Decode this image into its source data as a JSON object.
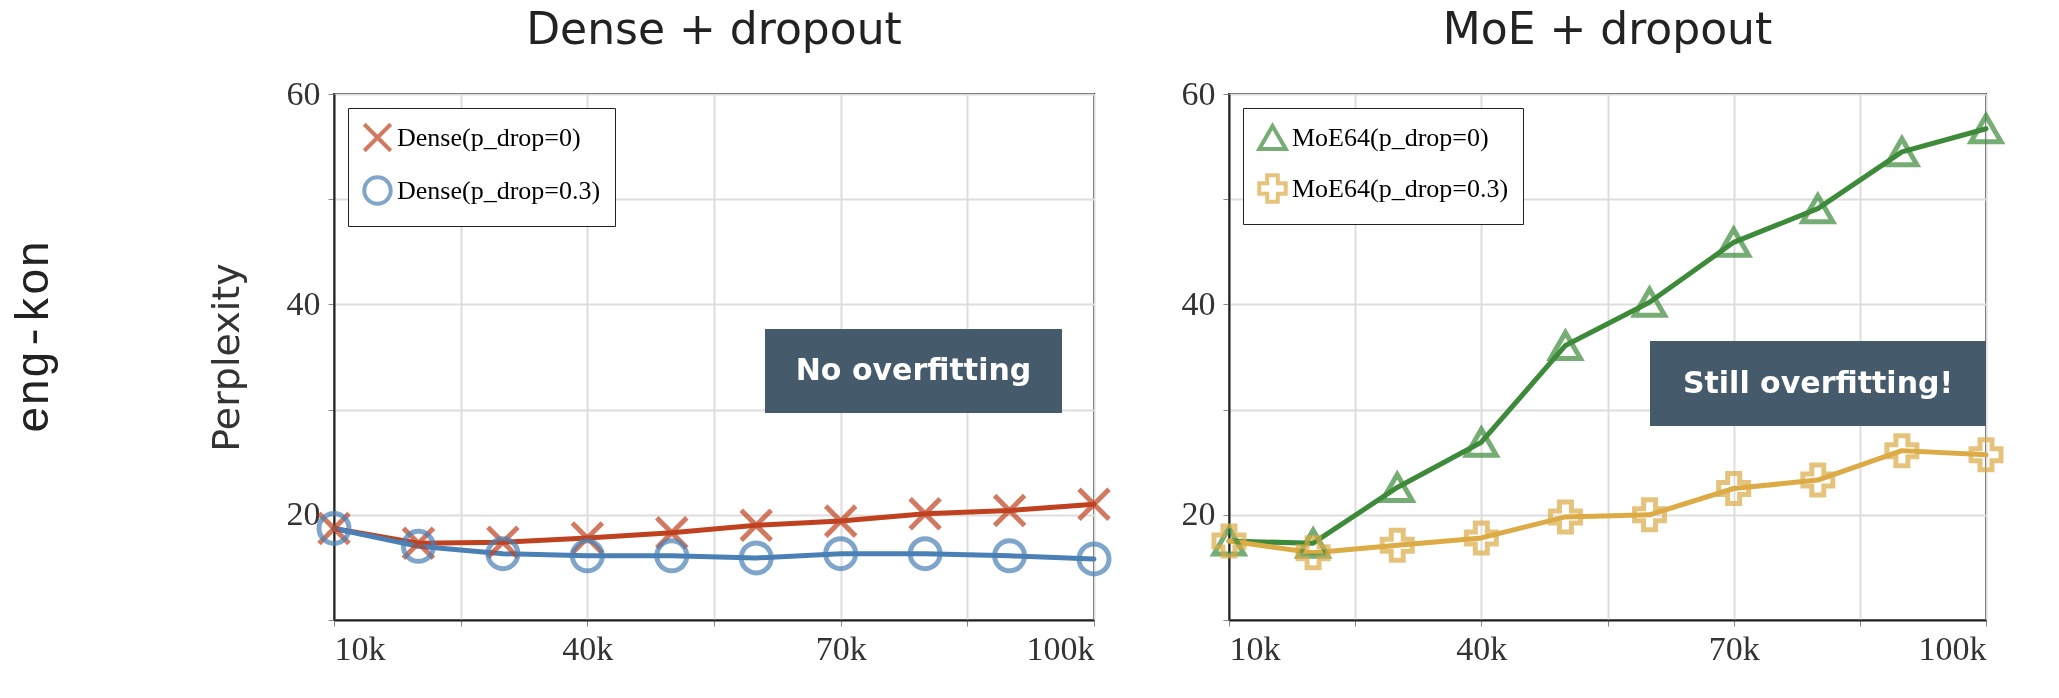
{
  "chart_data": [
    {
      "type": "line",
      "title": "Dense + dropout",
      "ylabel": "Perplexity",
      "x": [
        10000,
        20000,
        30000,
        40000,
        50000,
        60000,
        70000,
        80000,
        90000,
        100000
      ],
      "series": [
        {
          "name": "Dense(p_drop=0)",
          "color": "#c0411f",
          "marker": "x",
          "values": [
            18.7,
            17.3,
            17.4,
            17.8,
            18.3,
            19.0,
            19.4,
            20.1,
            20.4,
            21.0
          ]
        },
        {
          "name": "Dense(p_drop=0.3)",
          "color": "#4a80b5",
          "marker": "circle",
          "values": [
            18.7,
            17.0,
            16.3,
            16.1,
            16.1,
            15.9,
            16.3,
            16.3,
            16.1,
            15.8
          ]
        }
      ],
      "xlim": [
        10000,
        100000
      ],
      "xticks": [
        {
          "value": 10000,
          "label": "10k"
        },
        {
          "value": 25000,
          "label": null
        },
        {
          "value": 40000,
          "label": "40k"
        },
        {
          "value": 55000,
          "label": null
        },
        {
          "value": 70000,
          "label": "70k"
        },
        {
          "value": 85000,
          "label": null
        },
        {
          "value": 100000,
          "label": "100k"
        }
      ],
      "ylim": [
        10,
        60
      ],
      "yticks": [
        {
          "value": 10,
          "label": null
        },
        20,
        {
          "value": 30,
          "label": null
        },
        40,
        {
          "value": 50,
          "label": null
        },
        60
      ],
      "grid": true,
      "legend": "top left",
      "line_style": "solid",
      "annotations": [
        "eng-kon",
        "No overfitting"
      ]
    },
    {
      "type": "line",
      "title": "MoE + dropout",
      "x": [
        10000,
        20000,
        30000,
        40000,
        50000,
        60000,
        70000,
        80000,
        90000,
        100000
      ],
      "series": [
        {
          "name": "MoE64(p_drop=0)",
          "color": "#3d8b3a",
          "marker": "triangle",
          "values": [
            17.5,
            17.3,
            22.6,
            26.9,
            36.1,
            40.2,
            45.9,
            49.1,
            54.5,
            56.7
          ]
        },
        {
          "name": "MoE64(p_drop=0.3)",
          "color": "#dcab45",
          "marker": "cross",
          "values": [
            17.5,
            16.4,
            17.1,
            17.8,
            19.8,
            20.0,
            22.5,
            23.3,
            26.1,
            25.7
          ]
        }
      ],
      "xlim": [
        10000,
        100000
      ],
      "xticks": [
        {
          "value": 10000,
          "label": "10k"
        },
        {
          "value": 25000,
          "label": null
        },
        {
          "value": 40000,
          "label": "40k"
        },
        {
          "value": 55000,
          "label": null
        },
        {
          "value": 70000,
          "label": "70k"
        },
        {
          "value": 85000,
          "label": null
        },
        {
          "value": 100000,
          "label": "100k"
        }
      ],
      "ylim": [
        10,
        60
      ],
      "yticks": [
        {
          "value": 10,
          "label": null
        },
        20,
        {
          "value": 30,
          "label": null
        },
        40,
        {
          "value": 50,
          "label": null
        },
        60
      ],
      "grid": true,
      "legend": "top left",
      "line_style": "solid",
      "annotations": [
        "Still overfitting!"
      ]
    }
  ]
}
